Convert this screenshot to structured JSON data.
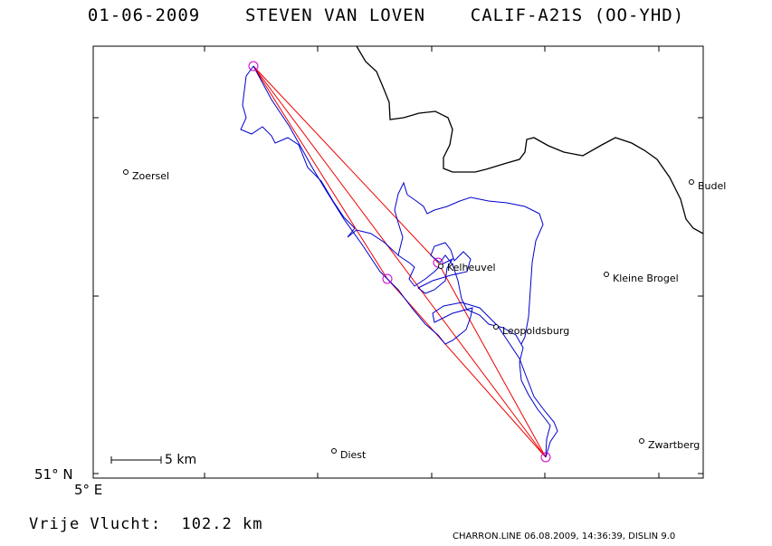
{
  "header": {
    "date": "01-06-2009",
    "pilot": "STEVEN VAN LOVEN",
    "glider": "CALIF-A21S (OO-YHD)"
  },
  "map": {
    "lat_label": "51° N",
    "lon_label": "5° E",
    "scale_label": "5 km",
    "places": [
      {
        "name": "Zoersel"
      },
      {
        "name": "Budel"
      },
      {
        "name": "Kelheuvel"
      },
      {
        "name": "Kleine Brogel"
      },
      {
        "name": "Leopoldsburg"
      },
      {
        "name": "Diest"
      },
      {
        "name": "Zwartberg"
      }
    ],
    "colors": {
      "track": "#0000cc",
      "task": "#ee0000",
      "turnpoint": "#cc00cc",
      "border": "#000000"
    }
  },
  "distance": {
    "label": "Vrije Vlucht:",
    "value": "102.2 km"
  },
  "footer": "CHARRON.LINE 06.08.2009, 14:36:39, DISLIN 9.0"
}
